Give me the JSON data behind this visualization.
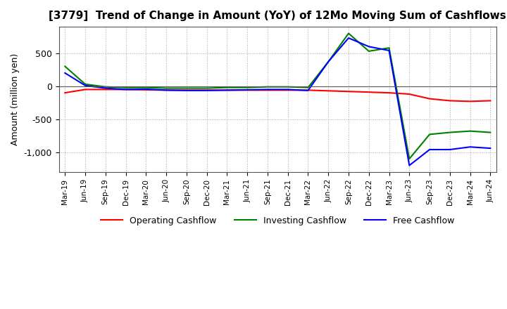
{
  "title": "[3779]  Trend of Change in Amount (YoY) of 12Mo Moving Sum of Cashflows",
  "ylabel": "Amount (million yen)",
  "x_labels": [
    "Mar-19",
    "Jun-19",
    "Sep-19",
    "Dec-19",
    "Mar-20",
    "Jun-20",
    "Sep-20",
    "Dec-20",
    "Mar-21",
    "Jun-21",
    "Sep-21",
    "Dec-21",
    "Mar-22",
    "Jun-22",
    "Sep-22",
    "Dec-22",
    "Mar-23",
    "Jun-23",
    "Sep-23",
    "Dec-23",
    "Mar-24",
    "Jun-24"
  ],
  "operating": [
    -100,
    -50,
    -50,
    -50,
    -55,
    -60,
    -60,
    -60,
    -60,
    -60,
    -60,
    -60,
    -60,
    -70,
    -80,
    -90,
    -100,
    -120,
    -190,
    -220,
    -230,
    -220
  ],
  "investing": [
    300,
    30,
    -10,
    -20,
    -20,
    -30,
    -30,
    -30,
    -20,
    -20,
    -10,
    -10,
    -20,
    370,
    800,
    530,
    580,
    -1100,
    -730,
    -700,
    -680,
    -700
  ],
  "free": [
    200,
    10,
    -30,
    -50,
    -45,
    -60,
    -65,
    -65,
    -60,
    -55,
    -50,
    -50,
    -65,
    370,
    730,
    600,
    540,
    -1200,
    -960,
    -960,
    -920,
    -940
  ],
  "operating_color": "#FF0000",
  "investing_color": "#008000",
  "free_color": "#0000FF",
  "ylim": [
    -1300,
    900
  ],
  "yticks": [
    -1000,
    -500,
    0,
    500
  ],
  "background_color": "#FFFFFF",
  "grid_color": "#AAAAAA",
  "title_fontsize": 11,
  "legend_labels": [
    "Operating Cashflow",
    "Investing Cashflow",
    "Free Cashflow"
  ]
}
